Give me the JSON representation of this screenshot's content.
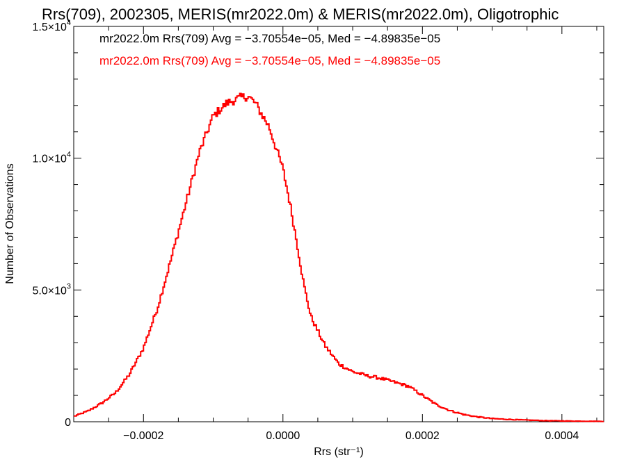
{
  "chart_data": {
    "type": "histogram",
    "title": "Rrs(709), 2002305, MERIS(mr2022.0m) & MERIS(mr2022.0m), Oligotrophic",
    "xlabel": "Rrs (str⁻¹)",
    "ylabel": "Number of Observations",
    "xlim": [
      -0.0003,
      0.00046
    ],
    "ylim": [
      0,
      15000
    ],
    "x_ticks": [
      -0.0002,
      0.0,
      0.0002,
      0.0004
    ],
    "x_tick_labels": [
      "−0.0002",
      "0.0000",
      "0.0002",
      "0.0004"
    ],
    "y_ticks": [
      0,
      5000,
      10000,
      15000
    ],
    "y_tick_labels": [
      {
        "mantissa": "0",
        "exponent": ""
      },
      {
        "mantissa": "5.0×10",
        "exponent": "3"
      },
      {
        "mantissa": "1.0×10",
        "exponent": "4"
      },
      {
        "mantissa": "1.5×10",
        "exponent": "4"
      }
    ],
    "grid": false,
    "legend": [
      {
        "label": "mr2022.0m Rrs(709) Avg = −3.70554e−05, Med = −4.89835e−05",
        "color": "#000000"
      },
      {
        "label": "mr2022.0m Rrs(709) Avg = −3.70554e−05, Med = −4.89835e−05",
        "color": "#ff0000"
      }
    ],
    "series": [
      {
        "color": "#ff0000",
        "points": [
          [
            -0.0003,
            200
          ],
          [
            -0.00028,
            400
          ],
          [
            -0.00026,
            700
          ],
          [
            -0.00024,
            1100
          ],
          [
            -0.00022,
            1800
          ],
          [
            -0.0002,
            2800
          ],
          [
            -0.00018,
            4300
          ],
          [
            -0.00016,
            6200
          ],
          [
            -0.00014,
            8200
          ],
          [
            -0.00012,
            10200
          ],
          [
            -0.0001,
            11600
          ],
          [
            -8e-05,
            12100
          ],
          [
            -6e-05,
            12300
          ],
          [
            -5e-05,
            12350
          ],
          [
            -4e-05,
            12100
          ],
          [
            -2e-05,
            11200
          ],
          [
            0.0,
            9600
          ],
          [
            1e-05,
            8300
          ],
          [
            2e-05,
            6800
          ],
          [
            3e-05,
            5200
          ],
          [
            4e-05,
            4000
          ],
          [
            6e-05,
            2900
          ],
          [
            8e-05,
            2200
          ],
          [
            0.0001,
            1900
          ],
          [
            0.00012,
            1750
          ],
          [
            0.00014,
            1650
          ],
          [
            0.00016,
            1500
          ],
          [
            0.00018,
            1350
          ],
          [
            0.0002,
            1000
          ],
          [
            0.00022,
            650
          ],
          [
            0.00024,
            420
          ],
          [
            0.00026,
            270
          ],
          [
            0.00028,
            180
          ],
          [
            0.0003,
            120
          ],
          [
            0.00034,
            70
          ],
          [
            0.00038,
            40
          ],
          [
            0.00042,
            25
          ],
          [
            0.00046,
            15
          ]
        ]
      }
    ]
  }
}
